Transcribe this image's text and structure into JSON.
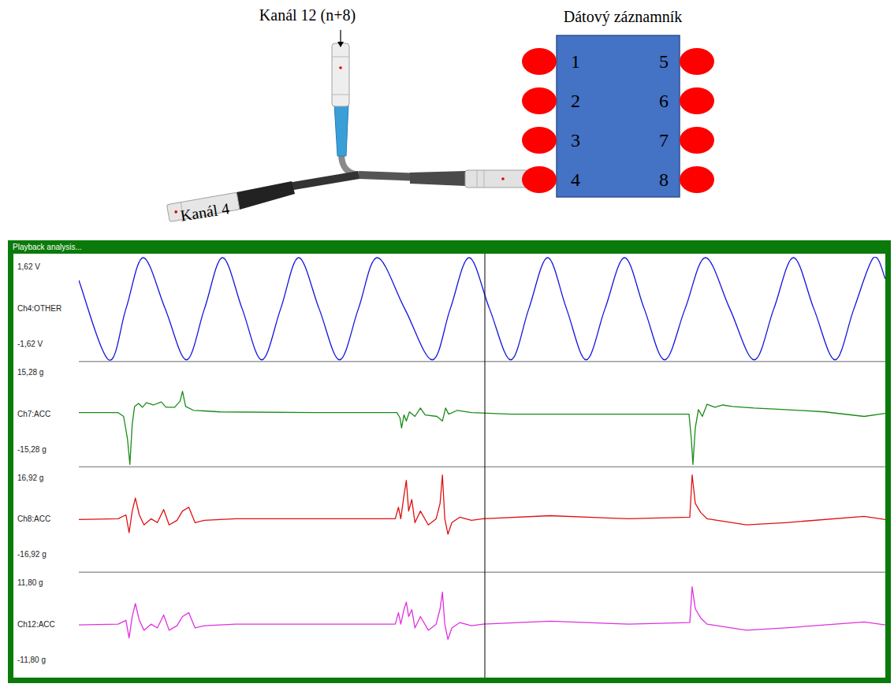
{
  "diagram": {
    "title": "Dátový záznamník",
    "channel_top": "Kanál 12 (n+8)",
    "channel_left": "Kanál 4",
    "ports": [
      "1",
      "2",
      "3",
      "4",
      "5",
      "6",
      "7",
      "8"
    ]
  },
  "window": {
    "title": "Playback analysis..."
  },
  "chart_data": [
    {
      "type": "line",
      "x": [
        0,
        38,
        60,
        82,
        110,
        137,
        160,
        183,
        208,
        233,
        257,
        280,
        306,
        332,
        356,
        380,
        415,
        450,
        473,
        497,
        523,
        550,
        573,
        597,
        621,
        646,
        670,
        695,
        720,
        746,
        772,
        798,
        829,
        860,
        885,
        910,
        936,
        963,
        987,
        1012,
        1027
      ],
      "xlim": [
        0,
        1027
      ],
      "ylim": [
        -1.62,
        1.62
      ],
      "yticks": [
        {
          "value": -1.62,
          "label": "-1,62 V"
        },
        {
          "value": 1.62,
          "label": "1,62 V"
        }
      ],
      "tick_labels": "y",
      "series": [
        {
          "name": "Ch4:OTHER",
          "color": "#1414e0",
          "line_style": "smooth",
          "values": [
            0.9,
            -1.62,
            0,
            1.62,
            0,
            -1.62,
            0,
            1.62,
            0,
            -1.62,
            0,
            1.62,
            0,
            -1.62,
            0,
            1.62,
            0,
            -1.62,
            0,
            1.62,
            0,
            -1.62,
            0,
            1.62,
            0,
            -1.62,
            0,
            1.62,
            0,
            -1.62,
            0,
            1.62,
            0,
            -1.62,
            0,
            1.62,
            0,
            -1.62,
            0,
            1.62,
            0.95
          ]
        }
      ]
    },
    {
      "type": "line",
      "x": [
        0,
        50,
        57,
        62,
        65,
        68,
        71,
        76,
        81,
        86,
        95,
        105,
        111,
        122,
        129,
        132,
        136,
        146,
        180,
        300,
        405,
        409,
        411,
        414,
        417,
        421,
        428,
        435,
        441,
        456,
        463,
        467,
        471,
        482,
        500,
        550,
        650,
        777,
        780,
        782,
        785,
        789,
        794,
        800,
        810,
        820,
        832,
        860,
        900,
        950,
        1000,
        1027
      ],
      "xlim": [
        0,
        1027
      ],
      "ylim": [
        -15.28,
        15.28
      ],
      "yticks": [
        {
          "value": -15.28,
          "label": "-15,28 g"
        },
        {
          "value": 15.28,
          "label": "15,28 g"
        }
      ],
      "tick_labels": "y",
      "series": [
        {
          "name": "Ch7:ACC",
          "color": "#1a8a1a",
          "line_style": "solid",
          "values": [
            0.46,
            0.46,
            -0.68,
            -7.5,
            -15.05,
            -2.96,
            2.28,
            3.19,
            2.05,
            3.42,
            2.74,
            3.65,
            2.05,
            2.05,
            3.88,
            6.84,
            2.28,
            1.14,
            0.68,
            0.46,
            0.46,
            -1.14,
            -4.1,
            -0.23,
            -2.05,
            0.68,
            -0.68,
            1.82,
            -0.23,
            -0.68,
            -2.05,
            1.82,
            0,
            1.14,
            0.46,
            0,
            0,
            0,
            -7.5,
            -15.05,
            -4.1,
            1.37,
            -0.68,
            2.96,
            2.05,
            2.74,
            2.28,
            1.82,
            1.37,
            0.68,
            -0.68,
            0.23
          ]
        }
      ]
    },
    {
      "type": "line",
      "x": [
        0,
        50,
        60,
        64,
        68,
        72,
        77,
        83,
        92,
        100,
        108,
        115,
        125,
        132,
        140,
        148,
        160,
        200,
        300,
        403,
        407,
        410,
        414,
        417,
        420,
        424,
        428,
        435,
        445,
        455,
        460,
        463,
        466,
        470,
        475,
        485,
        500,
        515,
        600,
        700,
        778,
        781,
        785,
        792,
        800,
        850,
        900,
        1000,
        1027
      ],
      "xlim": [
        0,
        1027
      ],
      "ylim": [
        -16.92,
        16.92
      ],
      "yticks": [
        {
          "value": -16.92,
          "label": "-16,92 g"
        },
        {
          "value": 16.92,
          "label": "16,92 g"
        }
      ],
      "tick_labels": "y",
      "series": [
        {
          "name": "Ch8:ACC",
          "color": "#e01010",
          "line_style": "solid",
          "values": [
            0,
            0.25,
            1.53,
            -4.33,
            2.8,
            7.13,
            1.53,
            -1.78,
            0.25,
            -1.02,
            3.31,
            -1.78,
            -0.25,
            2.8,
            4.07,
            -1.02,
            -0.25,
            0.25,
            0.25,
            0.25,
            4.07,
            0.25,
            7.89,
            12.98,
            2.8,
            6.62,
            -1.02,
            2.8,
            -1.78,
            0.25,
            5.34,
            14.76,
            0.25,
            -4.84,
            -1.02,
            0.76,
            -0.25,
            0.25,
            1.27,
            0.25,
            0.76,
            14.76,
            5.34,
            2.29,
            0.25,
            -1.78,
            -1.02,
            1.02,
            0
          ]
        }
      ]
    },
    {
      "type": "line",
      "x": [
        0,
        50,
        60,
        64,
        68,
        72,
        77,
        83,
        92,
        100,
        108,
        115,
        125,
        132,
        140,
        148,
        160,
        200,
        300,
        403,
        407,
        410,
        414,
        417,
        420,
        424,
        428,
        435,
        445,
        455,
        460,
        463,
        466,
        470,
        475,
        485,
        500,
        515,
        600,
        700,
        778,
        781,
        785,
        792,
        800,
        850,
        900,
        1000,
        1027
      ],
      "xlim": [
        0,
        1027
      ],
      "ylim": [
        -11.8,
        11.8
      ],
      "yticks": [
        {
          "value": -11.8,
          "label": "-11,80 g"
        },
        {
          "value": 11.8,
          "label": "11,80 g"
        }
      ],
      "tick_labels": "y",
      "series": [
        {
          "name": "Ch12:ACC",
          "color": "#e030e0",
          "line_style": "solid",
          "values": [
            0,
            0.18,
            1.06,
            -2.99,
            1.94,
            4.93,
            1.06,
            -1.23,
            0.18,
            -0.7,
            2.29,
            -1.23,
            -0.18,
            1.94,
            2.82,
            -0.7,
            -0.18,
            0.18,
            0.18,
            0.18,
            2.82,
            0.18,
            3.52,
            5.28,
            1.94,
            3.52,
            -0.7,
            1.94,
            -1.23,
            0.18,
            3.7,
            7.57,
            0.18,
            -3.34,
            -0.7,
            0.53,
            -0.18,
            0.18,
            0.88,
            0.18,
            0.53,
            8.8,
            3.7,
            1.58,
            0.18,
            -1.23,
            -0.7,
            0.7,
            0
          ]
        }
      ]
    }
  ]
}
